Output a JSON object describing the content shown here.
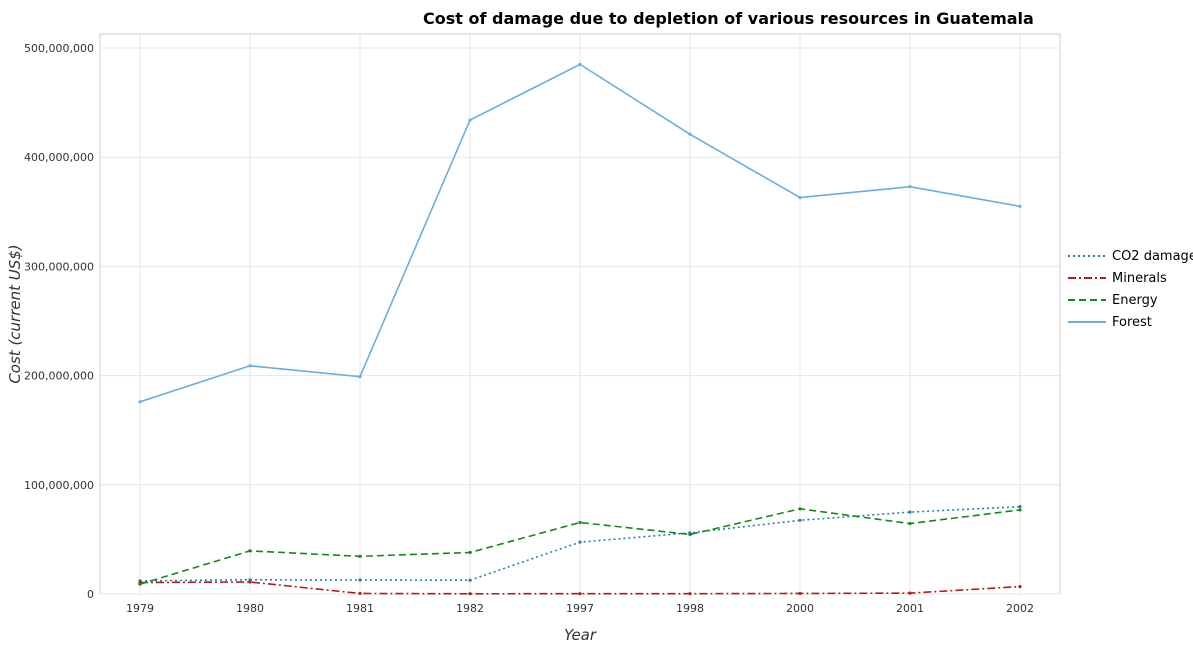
{
  "chart_data": {
    "type": "line",
    "title": "Cost of damage due to depletion of various resources in Guatemala",
    "xlabel": "Year",
    "ylabel": "Cost (current US$)",
    "categories": [
      "1979",
      "1980",
      "1981",
      "1982",
      "1997",
      "1998",
      "2000",
      "2001",
      "2002"
    ],
    "ylim": [
      0,
      500000000
    ],
    "yticks": [
      0,
      100000000,
      200000000,
      300000000,
      400000000,
      500000000
    ],
    "ytick_labels": [
      "0",
      "100,000,000",
      "200,000,000",
      "300,000,000",
      "400,000,000",
      "500,000,000"
    ],
    "legend_position": "right",
    "series": [
      {
        "name": "CO2 damage",
        "color": "#2a7fa8",
        "dash": "dotted",
        "values": [
          12000000,
          13000000,
          12800000,
          12600000,
          47500000,
          56000000,
          67500000,
          75000000,
          80000000
        ]
      },
      {
        "name": "Minerals",
        "color": "#b01e1e",
        "dash": "dashdot",
        "values": [
          10500000,
          11000000,
          500000,
          200000,
          300000,
          300000,
          500000,
          800000,
          6800000
        ]
      },
      {
        "name": "Energy",
        "color": "#138a13",
        "dash": "dashed",
        "values": [
          9000000,
          39500000,
          34500000,
          38000000,
          65500000,
          54500000,
          78000000,
          64500000,
          77000000
        ]
      },
      {
        "name": "Forest",
        "color": "#6aaee0",
        "dash": "solid",
        "values": [
          176000000,
          209000000,
          199000000,
          434000000,
          485000000,
          421000000,
          363000000,
          373000000,
          355000000
        ]
      }
    ]
  }
}
